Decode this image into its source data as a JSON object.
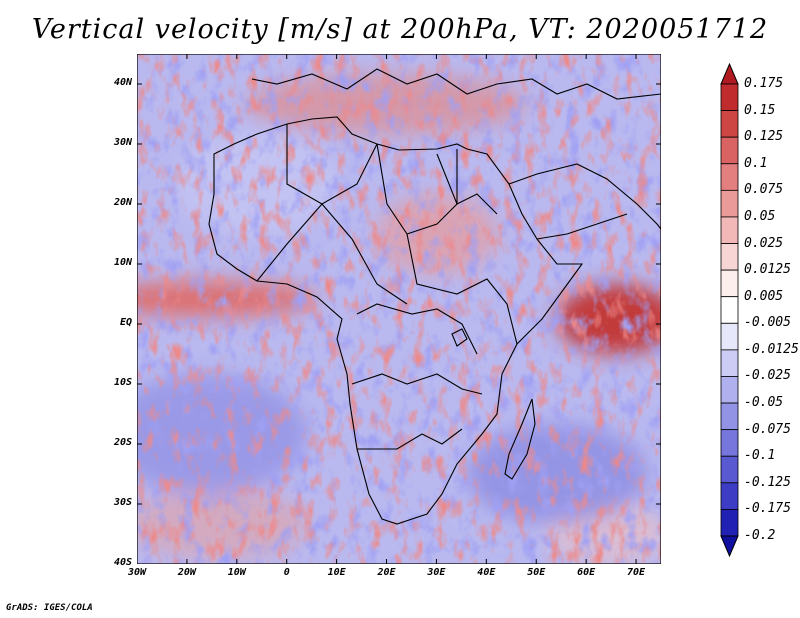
{
  "title": "Vertical velocity [m/s] at 200hPa, VT: 2020051712",
  "credit": "GrADS: IGES/COLA",
  "map": {
    "lon_range": [
      -30,
      75
    ],
    "lat_range": [
      -40,
      45
    ],
    "lat_ticks": [
      {
        "value": 40,
        "label": "40N"
      },
      {
        "value": 30,
        "label": "30N"
      },
      {
        "value": 20,
        "label": "20N"
      },
      {
        "value": 10,
        "label": "10N"
      },
      {
        "value": 0,
        "label": "EQ"
      },
      {
        "value": -10,
        "label": "10S"
      },
      {
        "value": -20,
        "label": "20S"
      },
      {
        "value": -30,
        "label": "30S"
      },
      {
        "value": -40,
        "label": "40S"
      }
    ],
    "lon_ticks": [
      {
        "value": -30,
        "label": "30W"
      },
      {
        "value": -20,
        "label": "20W"
      },
      {
        "value": -10,
        "label": "10W"
      },
      {
        "value": 0,
        "label": "0"
      },
      {
        "value": 10,
        "label": "10E"
      },
      {
        "value": 20,
        "label": "20E"
      },
      {
        "value": 30,
        "label": "30E"
      },
      {
        "value": 40,
        "label": "40E"
      },
      {
        "value": 50,
        "label": "50E"
      },
      {
        "value": 60,
        "label": "60E"
      },
      {
        "value": 70,
        "label": "70E"
      }
    ]
  },
  "colorbar": {
    "labels": [
      "0.175",
      "0.15",
      "0.125",
      "0.1",
      "0.075",
      "0.05",
      "0.025",
      "0.0125",
      "0.005",
      "-0.005",
      "-0.0125",
      "-0.025",
      "-0.05",
      "-0.075",
      "-0.1",
      "-0.125",
      "-0.175",
      "-0.2"
    ],
    "colors": [
      "#b11a21",
      "#c02b2e",
      "#cd4644",
      "#d96363",
      "#e47f7f",
      "#eb9a9a",
      "#f2b8b8",
      "#f8d5d5",
      "#fdeeee",
      "#ffffff",
      "#e7e7fb",
      "#ccccf5",
      "#b0b0ee",
      "#9393e6",
      "#7676dd",
      "#5959d2",
      "#3c3cc4",
      "#2121b3",
      "#1010a0"
    ]
  }
}
